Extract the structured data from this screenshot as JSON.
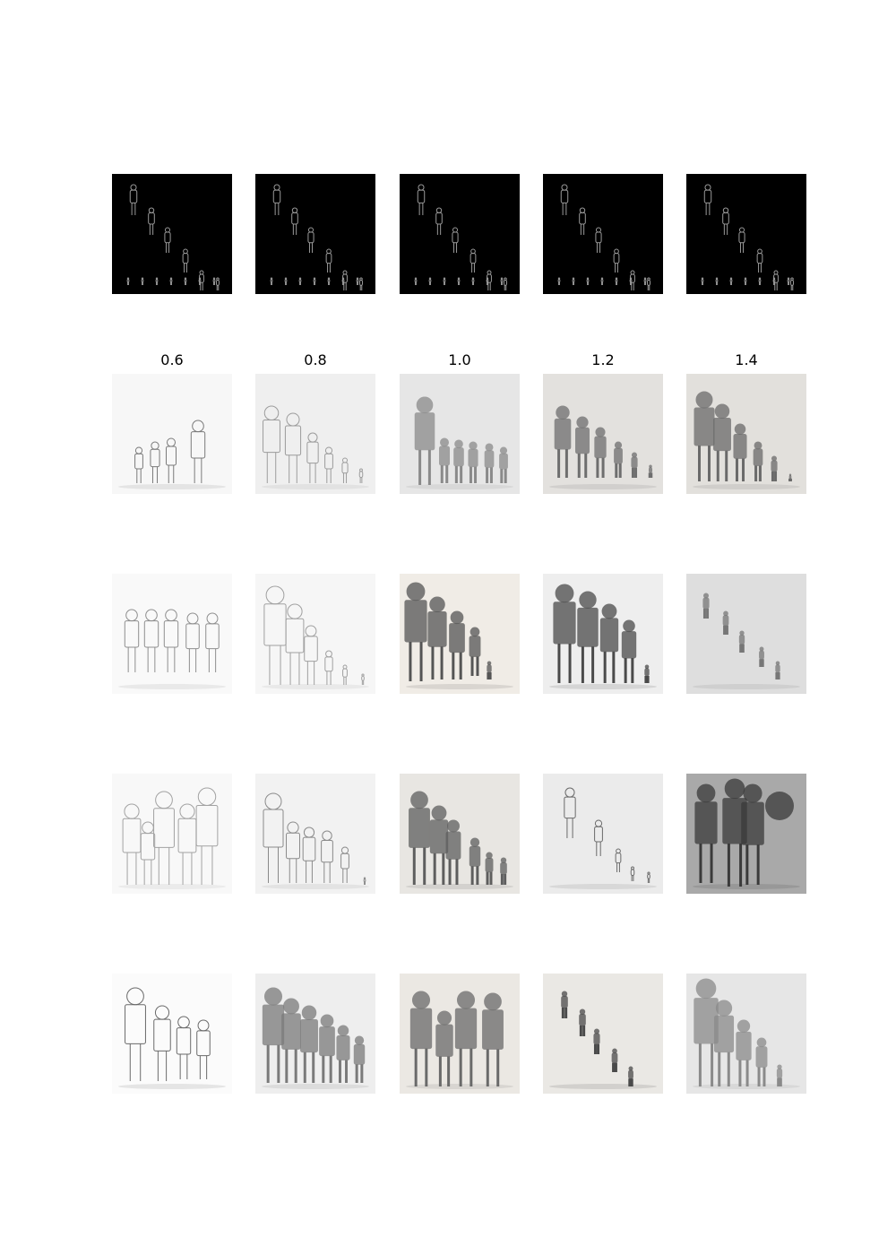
{
  "column_labels": [
    "0.6",
    "0.8",
    "1.0",
    "1.2",
    "1.4"
  ],
  "condition_row": {
    "description_icon": "edge-map-figures-icon",
    "colors": {
      "background": "#000000",
      "edge": "#9a9a9a"
    }
  },
  "sample_rows": [
    [
      {
        "bg": "#f7f7f7",
        "tone": "#7a7a7a",
        "fill": false
      },
      {
        "bg": "#efefef",
        "tone": "#9c9c9c",
        "fill": false
      },
      {
        "bg": "#e6e6e6",
        "tone": "#8a8a8a",
        "fill": true
      },
      {
        "bg": "#e3e1de",
        "tone": "#6e6e6e",
        "fill": true
      },
      {
        "bg": "#e2e0dc",
        "tone": "#6a6a6a",
        "fill": true
      }
    ],
    [
      {
        "bg": "#f9f9f9",
        "tone": "#8e8e8e",
        "fill": false
      },
      {
        "bg": "#f6f6f6",
        "tone": "#a0a0a0",
        "fill": false
      },
      {
        "bg": "#f0ece6",
        "tone": "#555555",
        "fill": true
      },
      {
        "bg": "#eeeeee",
        "tone": "#4a4a4a",
        "fill": true
      },
      {
        "bg": "#dedede",
        "tone": "#777777",
        "fill": true
      }
    ],
    [
      {
        "bg": "#f8f8f8",
        "tone": "#a2a2a2",
        "fill": false
      },
      {
        "bg": "#f2f2f2",
        "tone": "#8a8a8a",
        "fill": false
      },
      {
        "bg": "#e8e6e2",
        "tone": "#5e5e5e",
        "fill": true
      },
      {
        "bg": "#ebebeb",
        "tone": "#6a6a6a",
        "fill": false
      },
      {
        "bg": "#a9a9a9",
        "tone": "#3a3a3a",
        "fill": true
      }
    ],
    [
      {
        "bg": "#fbfbfb",
        "tone": "#6a6a6a",
        "fill": false
      },
      {
        "bg": "#eeeeee",
        "tone": "#7a7a7a",
        "fill": true
      },
      {
        "bg": "#ebe8e3",
        "tone": "#6a6a6a",
        "fill": true
      },
      {
        "bg": "#eae8e4",
        "tone": "#4a4a4a",
        "fill": true
      },
      {
        "bg": "#e6e6e6",
        "tone": "#8a8a8a",
        "fill": true
      }
    ]
  ]
}
